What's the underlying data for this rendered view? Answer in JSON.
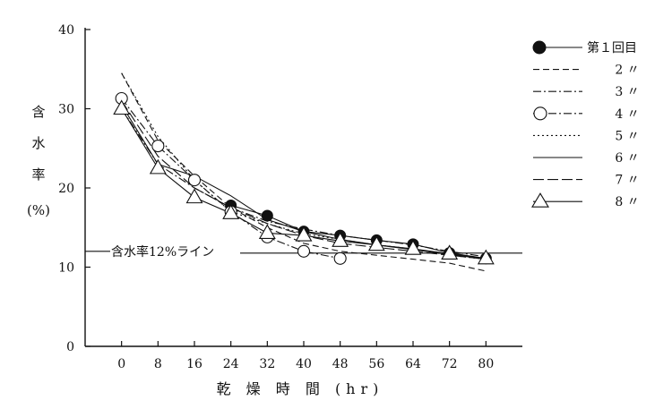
{
  "chart_data": {
    "type": "line",
    "title": "",
    "xlabel": "乾 燥 時 間 (hr)",
    "ylabel": [
      "含",
      "水",
      "率",
      "(%)"
    ],
    "x": [
      0,
      8,
      16,
      24,
      32,
      40,
      48,
      56,
      64,
      72,
      80
    ],
    "xlim": [
      -8,
      88
    ],
    "ylim": [
      0,
      40
    ],
    "yticks": [
      0,
      10,
      20,
      30,
      40
    ],
    "grid": false,
    "legend_position": "right",
    "reference_line": {
      "y": 12,
      "label": "含水率12%ライン"
    },
    "series": [
      {
        "name": "第１回目",
        "marker": "filled-circle",
        "dash": "solid",
        "points": [
          [
            24,
            17.8
          ],
          [
            32,
            16.5
          ],
          [
            40,
            14.5
          ],
          [
            48,
            14
          ],
          [
            56,
            13.4
          ],
          [
            64,
            12.9
          ],
          [
            72,
            11.8
          ],
          [
            80,
            11.1
          ]
        ]
      },
      {
        "name": "2 〃",
        "marker": "none",
        "dash": "dashed",
        "points": [
          [
            0,
            34.5
          ],
          [
            8,
            26
          ],
          [
            16,
            21.5
          ],
          [
            24,
            17.5
          ],
          [
            32,
            15
          ],
          [
            40,
            13
          ],
          [
            48,
            12
          ],
          [
            56,
            11.5
          ],
          [
            64,
            11
          ],
          [
            72,
            10.5
          ],
          [
            80,
            9.5
          ]
        ]
      },
      {
        "name": "3 〃",
        "marker": "none",
        "dash": "dashdot",
        "points": [
          [
            0,
            30
          ],
          [
            8,
            23
          ],
          [
            16,
            20
          ],
          [
            24,
            17.5
          ],
          [
            32,
            15.8
          ],
          [
            40,
            14.8
          ],
          [
            48,
            14
          ],
          [
            56,
            13.4
          ],
          [
            64,
            12.8
          ],
          [
            72,
            12
          ],
          [
            80,
            11.3
          ]
        ]
      },
      {
        "name": "4 〃",
        "marker": "open-circle",
        "dash": "dashdot",
        "points": [
          [
            0,
            31.3
          ],
          [
            8,
            25.3
          ],
          [
            16,
            21
          ],
          [
            24,
            17
          ],
          [
            32,
            13.8
          ],
          [
            40,
            12
          ],
          [
            48,
            11.1
          ]
        ]
      },
      {
        "name": "5 〃",
        "marker": "none",
        "dash": "dotted",
        "points": [
          [
            0,
            34.5
          ],
          [
            8,
            26.5
          ],
          [
            16,
            21
          ],
          [
            24,
            17
          ],
          [
            32,
            15.5
          ],
          [
            40,
            14.2
          ],
          [
            48,
            13.5
          ],
          [
            56,
            12.8
          ],
          [
            64,
            12.3
          ],
          [
            72,
            11.5
          ],
          [
            80,
            11
          ]
        ]
      },
      {
        "name": "6 〃",
        "marker": "none",
        "dash": "solid",
        "points": [
          [
            0,
            30.5
          ],
          [
            8,
            23
          ],
          [
            16,
            21.5
          ],
          [
            24,
            19
          ],
          [
            32,
            16
          ],
          [
            40,
            14.5
          ],
          [
            48,
            13.5
          ],
          [
            56,
            12.8
          ],
          [
            64,
            12.2
          ],
          [
            72,
            11.6
          ],
          [
            80,
            11
          ]
        ]
      },
      {
        "name": "7 〃",
        "marker": "none",
        "dash": "longdash",
        "points": [
          [
            0,
            31
          ],
          [
            8,
            24
          ],
          [
            16,
            20
          ],
          [
            24,
            17.5
          ],
          [
            32,
            15.5
          ],
          [
            40,
            14
          ],
          [
            48,
            13
          ],
          [
            56,
            12.5
          ],
          [
            64,
            12
          ],
          [
            72,
            11.5
          ],
          [
            80,
            11
          ]
        ]
      },
      {
        "name": "8 〃",
        "marker": "open-triangle",
        "dash": "solid",
        "points": [
          [
            0,
            30
          ],
          [
            8,
            22.5
          ],
          [
            16,
            18.8
          ],
          [
            24,
            16.8
          ],
          [
            32,
            14.3
          ],
          [
            40,
            14
          ],
          [
            48,
            13.3
          ],
          [
            56,
            12.8
          ],
          [
            64,
            12.3
          ],
          [
            72,
            11.7
          ],
          [
            80,
            11.1
          ]
        ]
      }
    ]
  }
}
